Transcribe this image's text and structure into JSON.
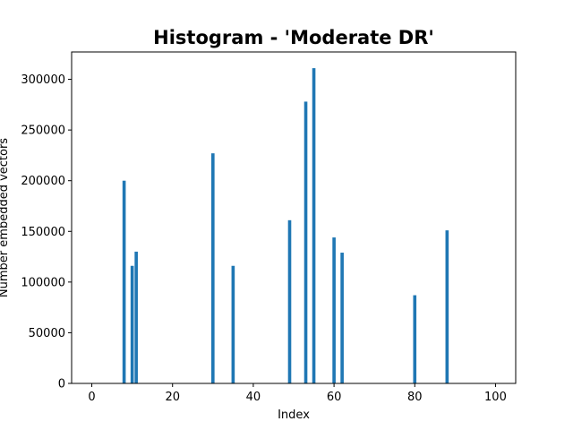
{
  "chart_data": {
    "type": "bar",
    "title": "Histogram - 'Moderate DR'",
    "xlabel": "Index",
    "ylabel": "Number embedded vectors",
    "xlim": [
      -5,
      105
    ],
    "ylim": [
      0,
      327000
    ],
    "xticks": [
      0,
      20,
      40,
      60,
      80,
      100
    ],
    "yticks": [
      0,
      50000,
      100000,
      150000,
      200000,
      250000,
      300000
    ],
    "bar_color": "#1f77b4",
    "grid": false,
    "x": [
      8,
      10,
      11,
      30,
      35,
      49,
      53,
      55,
      60,
      62,
      80,
      88
    ],
    "values": [
      200000,
      116000,
      130000,
      227000,
      116000,
      161000,
      278000,
      311000,
      144000,
      129000,
      87000,
      151000
    ]
  }
}
